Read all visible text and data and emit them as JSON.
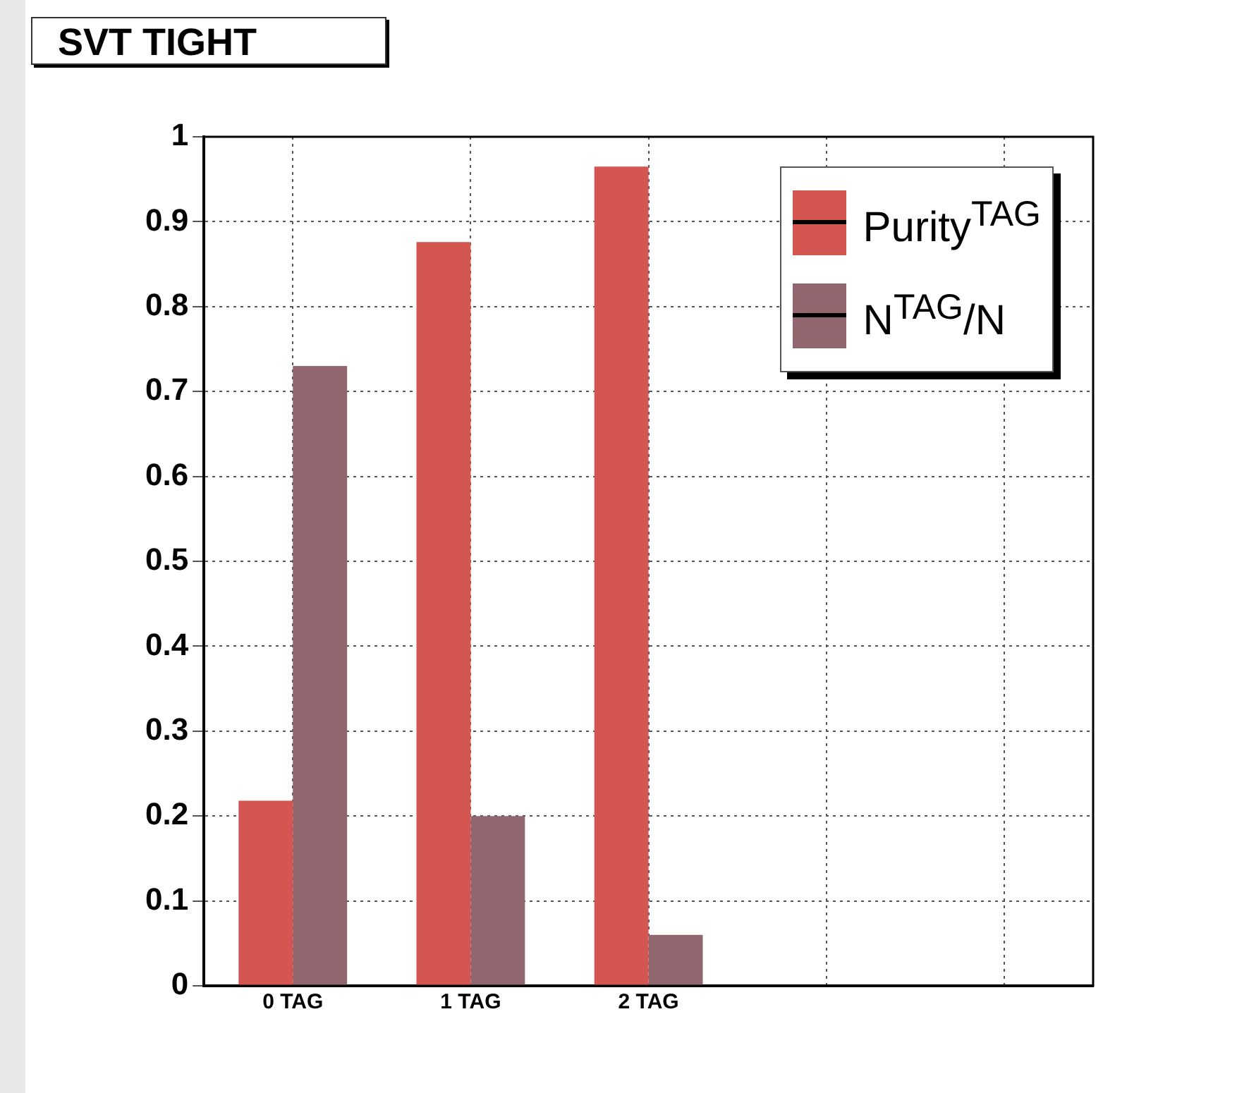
{
  "chart_data": {
    "type": "bar",
    "title": "SVT TIGHT",
    "categories": [
      "0 TAG",
      "1 TAG",
      "2 TAG",
      null,
      null
    ],
    "series": [
      {
        "name": "Purity$^{TAG}$",
        "color": "#d35651",
        "values": [
          0.218,
          0.876,
          0.965,
          null,
          null
        ]
      },
      {
        "name": "N$^{TAG}$/N",
        "color": "#91666e",
        "values": [
          0.73,
          0.2,
          0.06,
          null,
          null
        ]
      }
    ],
    "ylim": [
      0,
      1
    ],
    "yticks": [
      0,
      0.1,
      0.2,
      0.3,
      0.4,
      0.5,
      0.6,
      0.7,
      0.8,
      0.9,
      1
    ],
    "grid": true,
    "legend": "top right"
  }
}
